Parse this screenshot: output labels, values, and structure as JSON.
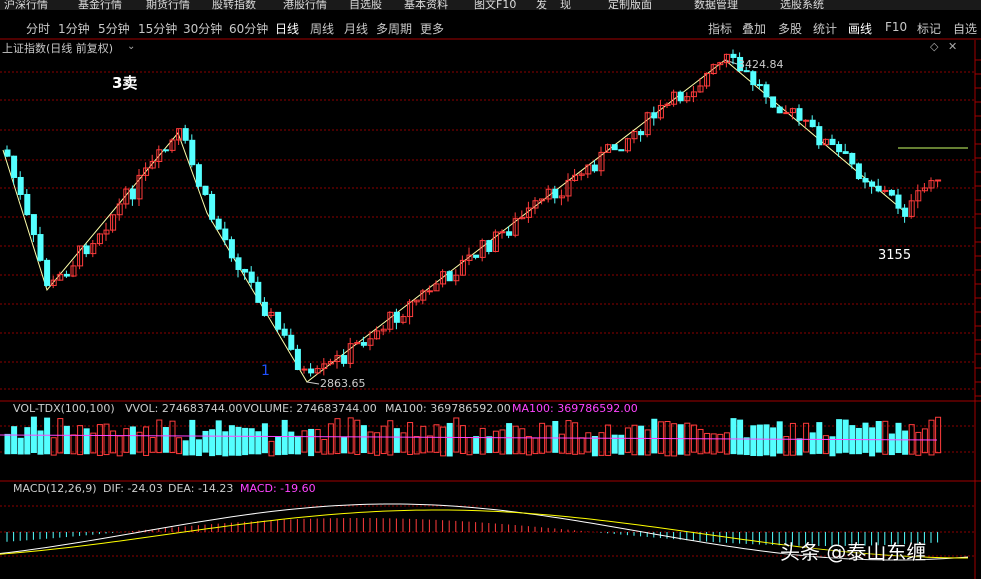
{
  "menubar": [
    "沪深行情",
    "基金行情",
    "期货行情",
    "股转指数",
    "港股行情",
    "自选股",
    "基本资料",
    "图文F10",
    "发",
    "现",
    "定制版面",
    "数据管理",
    "选股系统"
  ],
  "period_tabs": [
    "分时",
    "1分钟",
    "5分钟",
    "15分钟",
    "30分钟",
    "60分钟",
    "日线",
    "周线",
    "月线",
    "多周期",
    "更多"
  ],
  "active_period": "日线",
  "right_tabs": [
    "指标",
    "叠加",
    "多股",
    "统计",
    "画线",
    "F10",
    "标记",
    "自选"
  ],
  "active_right_tab": "画线",
  "chart_title": "上证指数(日线 前复权)",
  "annotations": {
    "sell3": "3卖",
    "wave1": "1",
    "level_3155": "3155",
    "high_label": "3424.84",
    "low_label": "2863.65"
  },
  "volume_panel": {
    "indicator": "VOL-TDX(100,100)",
    "vvol": "VVOL: 274683744.00",
    "volume": "VOLUME: 274683744.00",
    "ma100_a": "MA100: 369786592.00",
    "ma100_b": "MA100: 369786592.00"
  },
  "macd_panel": {
    "indicator": "MACD(12,26,9)",
    "dif": "DIF: -24.03",
    "dea": "DEA: -14.23",
    "macd": "MACD: -19.60"
  },
  "watermark": "头条 @泰山东缠",
  "colors": {
    "up": "#ff3c3c",
    "down": "#54ffff",
    "line": "#ffffaa",
    "grid": "#8b0000",
    "magenta": "#ff44ff"
  },
  "chart_data": {
    "type": "candlestick",
    "high": 3424.84,
    "low": 2863.65,
    "level_line": 3155
  }
}
